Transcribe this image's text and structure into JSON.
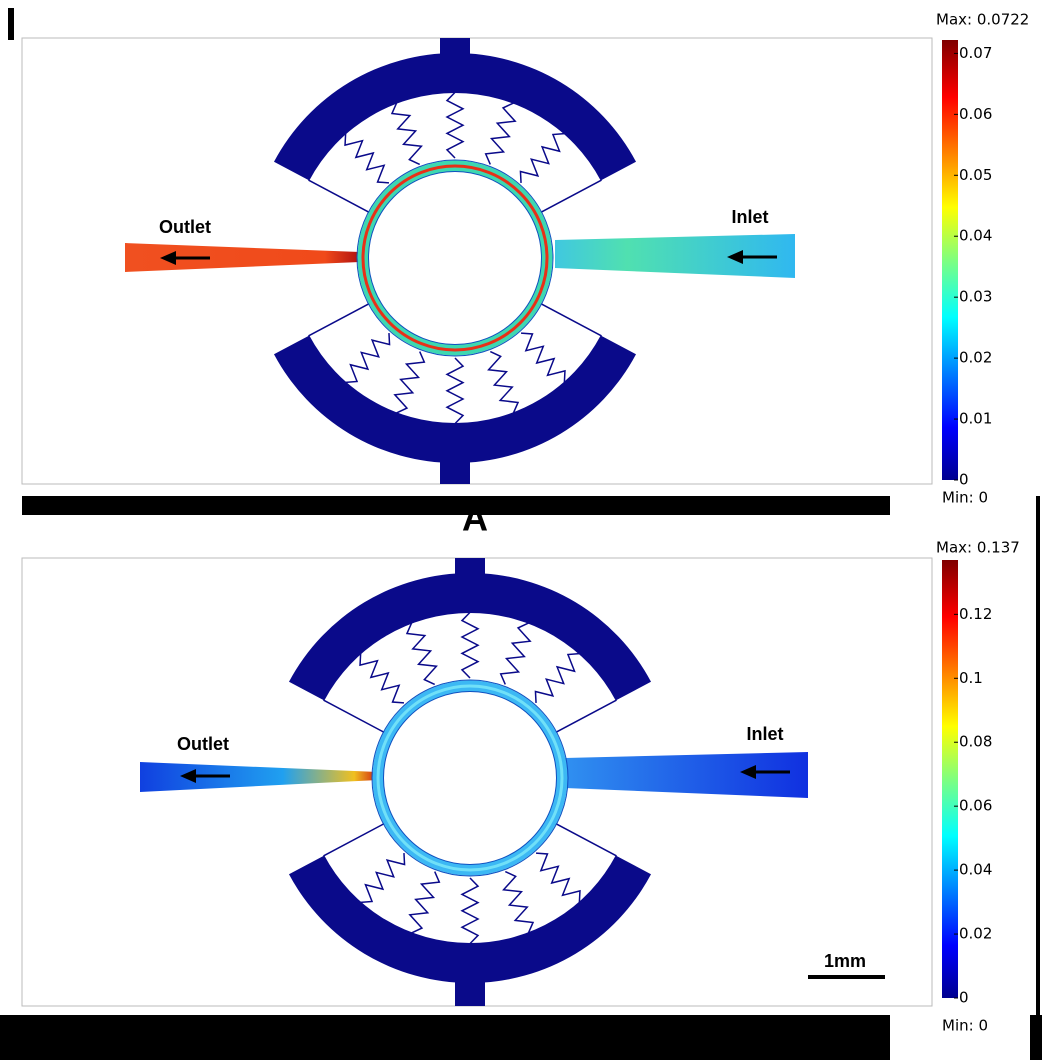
{
  "panels": [
    {
      "outlet": "Outlet",
      "inlet": "Inlet",
      "caption": "A",
      "colorbar": {
        "range": [
          0,
          0.0722
        ],
        "max_label": "Max: 0.0722",
        "min_label": "Min: 0",
        "ticks": [
          0,
          0.01,
          0.02,
          0.03,
          0.04,
          0.05,
          0.06,
          0.07
        ]
      }
    },
    {
      "outlet": "Outlet",
      "inlet": "Inlet",
      "scale_bar": "1mm",
      "colorbar": {
        "range": [
          0,
          0.137
        ],
        "max_label": "Max: 0.137",
        "min_label": "Min: 0",
        "ticks": [
          0,
          0.02,
          0.04,
          0.06,
          0.08,
          0.1,
          0.12
        ]
      }
    }
  ]
}
